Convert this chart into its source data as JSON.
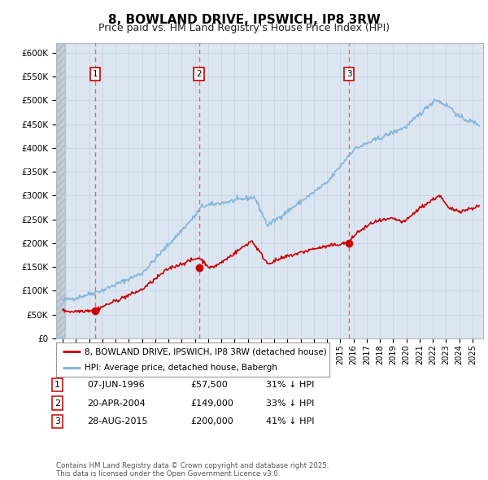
{
  "title": "8, BOWLAND DRIVE, IPSWICH, IP8 3RW",
  "subtitle": "Price paid vs. HM Land Registry's House Price Index (HPI)",
  "hpi_label": "HPI: Average price, detached house, Babergh",
  "price_label": "8, BOWLAND DRIVE, IPSWICH, IP8 3RW (detached house)",
  "footer": "Contains HM Land Registry data © Crown copyright and database right 2025.\nThis data is licensed under the Open Government Licence v3.0.",
  "transactions": [
    {
      "num": 1,
      "date": "07-JUN-1996",
      "price": 57500,
      "pct": "31% ↓ HPI",
      "year": 1996.44
    },
    {
      "num": 2,
      "date": "20-APR-2004",
      "price": 149000,
      "pct": "33% ↓ HPI",
      "year": 2004.3
    },
    {
      "num": 3,
      "date": "28-AUG-2015",
      "price": 200000,
      "pct": "41% ↓ HPI",
      "year": 2015.65
    }
  ],
  "ylim": [
    0,
    620000
  ],
  "yticks": [
    0,
    50000,
    100000,
    150000,
    200000,
    250000,
    300000,
    350000,
    400000,
    450000,
    500000,
    550000,
    600000
  ],
  "xlim_start": 1993.5,
  "xlim_end": 2025.8,
  "hpi_color": "#7ab0d8",
  "price_color": "#cc0000",
  "grid_color": "#c8d8e8",
  "bg_color": "#dce6f1",
  "hatch_color": "#bec8d4",
  "vline_color": "#ff4444",
  "title_fontsize": 11,
  "subtitle_fontsize": 9
}
